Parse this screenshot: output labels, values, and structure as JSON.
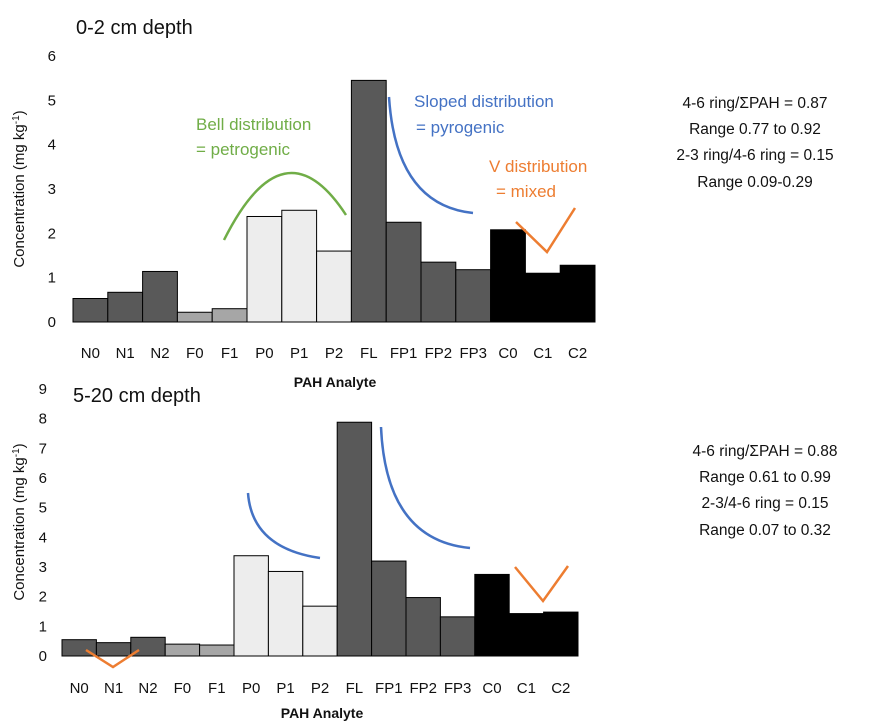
{
  "colors": {
    "dark_gray": "#595959",
    "light_gray": "#a6a6a6",
    "very_light": "#ededed",
    "black": "#000000",
    "green": "#70ad47",
    "blue": "#4472c4",
    "orange": "#ed7d31"
  },
  "chart_data": [
    {
      "type": "bar",
      "title": "0-2 cm depth",
      "xlabel": "PAH Analyte",
      "ylabel": "Concentration (mg kg-1)",
      "ylim": [
        0,
        6
      ],
      "yticks": [
        0,
        1,
        2,
        3,
        4,
        5,
        6
      ],
      "categories": [
        "N0",
        "N1",
        "N2",
        "F0",
        "F1",
        "P0",
        "P1",
        "P2",
        "FL",
        "FP1",
        "FP2",
        "FP3",
        "C0",
        "C1",
        "C2"
      ],
      "values": [
        0.53,
        0.67,
        1.14,
        0.22,
        0.3,
        2.38,
        2.52,
        1.6,
        5.45,
        2.25,
        1.35,
        1.18,
        2.08,
        1.1,
        1.28
      ],
      "bar_colors": [
        "dark_gray",
        "dark_gray",
        "dark_gray",
        "light_gray",
        "light_gray",
        "very_light",
        "very_light",
        "very_light",
        "dark_gray",
        "dark_gray",
        "dark_gray",
        "dark_gray",
        "black",
        "black",
        "black"
      ],
      "annotations": [
        {
          "lines": [
            "Bell distribution",
            "= petrogenic"
          ],
          "color": "green",
          "shape": "bell"
        },
        {
          "lines": [
            "Sloped distribution",
            "= pyrogenic"
          ],
          "color": "blue",
          "shape": "slope"
        },
        {
          "lines": [
            "V distribution",
            "= mixed"
          ],
          "color": "orange",
          "shape": "v"
        }
      ],
      "notes": [
        "4-6 ring/ΣPAH = 0.87",
        "Range 0.77 to 0.92",
        "2-3 ring/4-6 ring = 0.15",
        "Range 0.09-0.29"
      ]
    },
    {
      "type": "bar",
      "title": "5-20 cm depth",
      "xlabel": "PAH Analyte",
      "ylabel": "Concentration (mg kg-1)",
      "ylim": [
        0,
        9
      ],
      "yticks": [
        0,
        1,
        2,
        3,
        4,
        5,
        6,
        7,
        8,
        9
      ],
      "categories": [
        "N0",
        "N1",
        "N2",
        "F0",
        "F1",
        "P0",
        "P1",
        "P2",
        "FL",
        "FP1",
        "FP2",
        "FP3",
        "C0",
        "C1",
        "C2"
      ],
      "values": [
        0.55,
        0.45,
        0.63,
        0.4,
        0.37,
        3.38,
        2.85,
        1.68,
        7.88,
        3.2,
        1.97,
        1.32,
        2.75,
        1.43,
        1.48
      ],
      "bar_colors": [
        "dark_gray",
        "dark_gray",
        "dark_gray",
        "light_gray",
        "light_gray",
        "very_light",
        "very_light",
        "very_light",
        "dark_gray",
        "dark_gray",
        "dark_gray",
        "dark_gray",
        "black",
        "black",
        "black"
      ],
      "annotations": [
        {
          "lines": [],
          "color": "orange",
          "shape": "v-small"
        },
        {
          "lines": [],
          "color": "blue",
          "shape": "slope-small"
        },
        {
          "lines": [],
          "color": "blue",
          "shape": "slope"
        },
        {
          "lines": [],
          "color": "orange",
          "shape": "v"
        }
      ],
      "notes": [
        "4-6 ring/ΣPAH = 0.88",
        "Range 0.61 to 0.99",
        "2-3/4-6 ring = 0.15",
        "Range 0.07 to 0.32"
      ]
    }
  ]
}
